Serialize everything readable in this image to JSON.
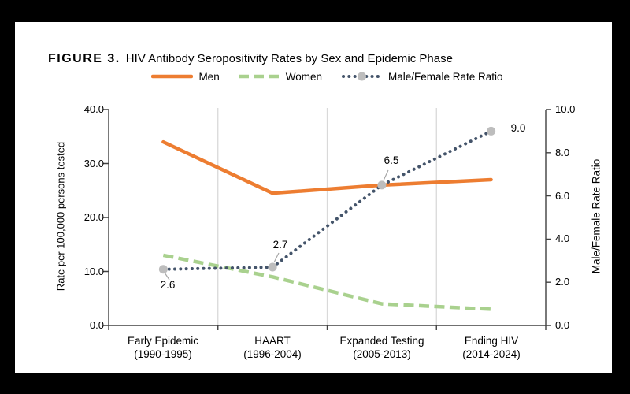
{
  "title": {
    "prefix": "FIGURE 3.",
    "text": "HIV Antibody Seropositivity Rates by Sex and Epidemic Phase"
  },
  "legend": [
    {
      "label": "Men",
      "swatch": "solid-line",
      "color": "#ED7D31"
    },
    {
      "label": "Women",
      "swatch": "dashed-line",
      "color": "#A9D18E"
    },
    {
      "label": "Male/Female Rate Ratio",
      "swatch": "dotted-line-with-marker",
      "color": "#44546A",
      "marker_color": "#BDBDBD"
    }
  ],
  "axes": {
    "left": {
      "title": "Rate per 100,000 persons tested",
      "ticks": [
        "40.0",
        "30.0",
        "20.0",
        "10.0",
        "0.0"
      ]
    },
    "right": {
      "title": "Male/Female Rate Ratio",
      "ticks": [
        "10.0",
        "8.0",
        "6.0",
        "4.0",
        "2.0",
        "0.0"
      ]
    },
    "x": {
      "categories": [
        {
          "line1": "Early Epidemic",
          "line2": "(1990-1995)"
        },
        {
          "line1": "HAART",
          "line2": "(1996-2004)"
        },
        {
          "line1": "Expanded Testing",
          "line2": "(2005-2013)"
        },
        {
          "line1": "Ending HIV",
          "line2": "(2014-2024)"
        }
      ]
    }
  },
  "data_labels": [
    "2.6",
    "2.7",
    "6.5",
    "9.0"
  ],
  "chart_data": {
    "type": "line",
    "title": "FIGURE 3. HIV Antibody Seropositivity Rates by Sex and Epidemic Phase",
    "categories": [
      "Early Epidemic (1990-1995)",
      "HAART (1996-2004)",
      "Expanded Testing (2005-2013)",
      "Ending HIV (2014-2024)"
    ],
    "series": [
      {
        "name": "Men",
        "axis": "left",
        "style": "solid",
        "color": "#ED7D31",
        "values": [
          34.0,
          24.5,
          26.0,
          27.0
        ]
      },
      {
        "name": "Women",
        "axis": "left",
        "style": "dashed",
        "color": "#A9D18E",
        "values": [
          13.0,
          9.0,
          4.0,
          3.0
        ]
      },
      {
        "name": "Male/Female Rate Ratio",
        "axis": "right",
        "style": "dotted",
        "color": "#44546A",
        "marker": "circle",
        "marker_color": "#BDBDBD",
        "values": [
          2.6,
          2.7,
          6.5,
          9.0
        ],
        "point_labels": [
          "2.6",
          "2.7",
          "6.5",
          "9.0"
        ]
      }
    ],
    "xlabel": "",
    "ylabel_left": "Rate per 100,000 persons tested",
    "ylabel_right": "Male/Female Rate Ratio",
    "ylim_left": [
      0,
      40
    ],
    "ylim_right": [
      0,
      10
    ],
    "grid": "vertical-category-separators-only",
    "legend_position": "top-center",
    "colors": {
      "frame": "#000000",
      "panel": "#FFFFFF",
      "axis": "#404040",
      "gridline": "#D9D9D9",
      "leader_line": "#A6A6A6",
      "text": "#000000"
    }
  }
}
